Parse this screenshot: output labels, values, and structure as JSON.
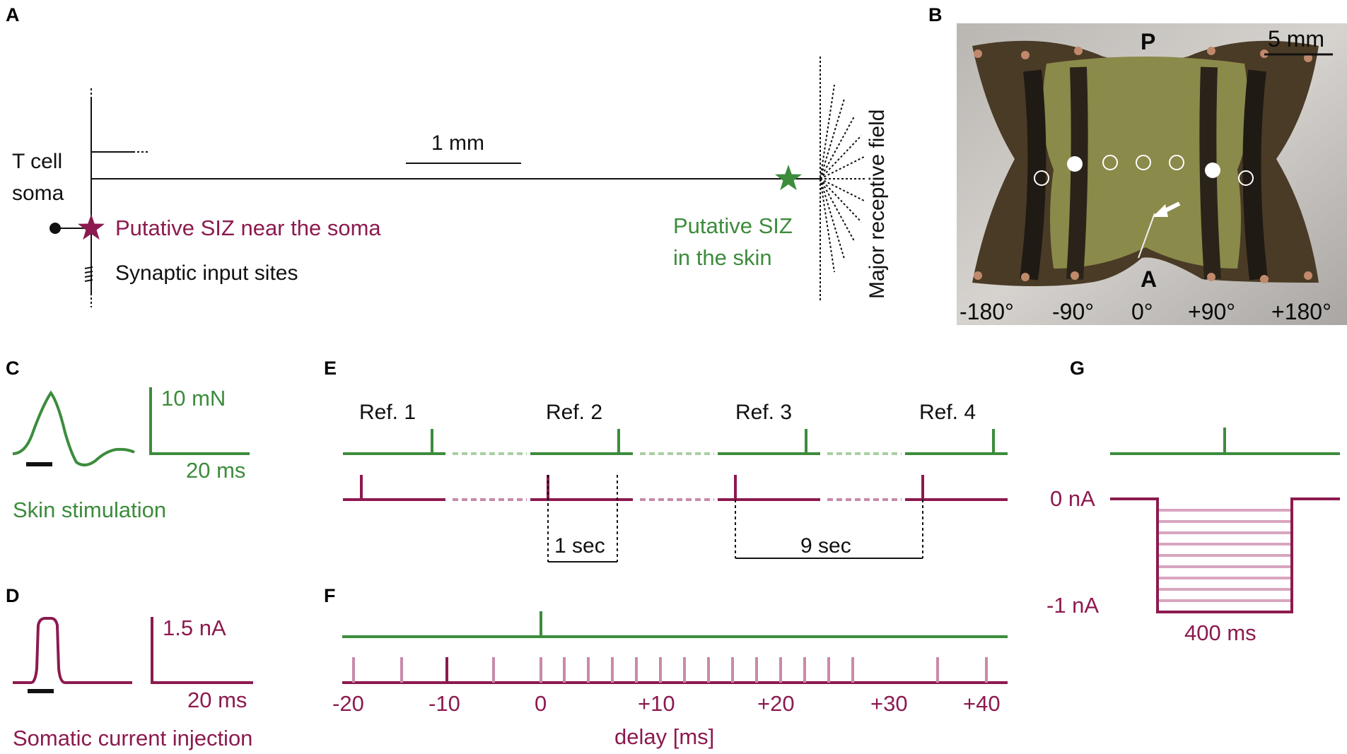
{
  "colors": {
    "green": "#3c8c3c",
    "magenta": "#8c1a4f",
    "magenta_light": "#c98aa9",
    "green_light": "#a9cfa2"
  },
  "panels": {
    "a": "A",
    "b": "B",
    "c": "C",
    "d": "D",
    "e": "E",
    "f": "F",
    "g": "G"
  },
  "panel_a": {
    "soma_line1": "T cell",
    "soma_line2": "soma",
    "scale": "1 mm",
    "siz_soma": "Putative SIZ near the soma",
    "synaptic": "Synaptic input sites",
    "siz_skin_line1": "Putative SIZ",
    "siz_skin_line2": "in the skin",
    "receptive_field": "Major receptive field"
  },
  "panel_b": {
    "posterior": "P",
    "anterior": "A",
    "scale": "5 mm",
    "angles": [
      "-180°",
      "-90°",
      "0°",
      "+90°",
      "+180°"
    ]
  },
  "panel_c": {
    "scale_y": "10 mN",
    "scale_x": "20 ms",
    "caption": "Skin stimulation"
  },
  "panel_d": {
    "scale_y": "1.5 nA",
    "scale_x": "20 ms",
    "caption": "Somatic current injection"
  },
  "panel_e": {
    "refs": [
      "Ref. 1",
      "Ref. 2",
      "Ref. 3",
      "Ref. 4"
    ],
    "interval_short": "1 sec",
    "interval_long": "9 sec"
  },
  "panel_f": {
    "ticks": [
      "-20",
      "-10",
      "0",
      "+10",
      "+20",
      "+30",
      "+40"
    ],
    "xlabel": "delay [ms]"
  },
  "panel_g": {
    "level_top": "0 nA",
    "level_bottom": "-1 nA",
    "duration": "400 ms"
  }
}
